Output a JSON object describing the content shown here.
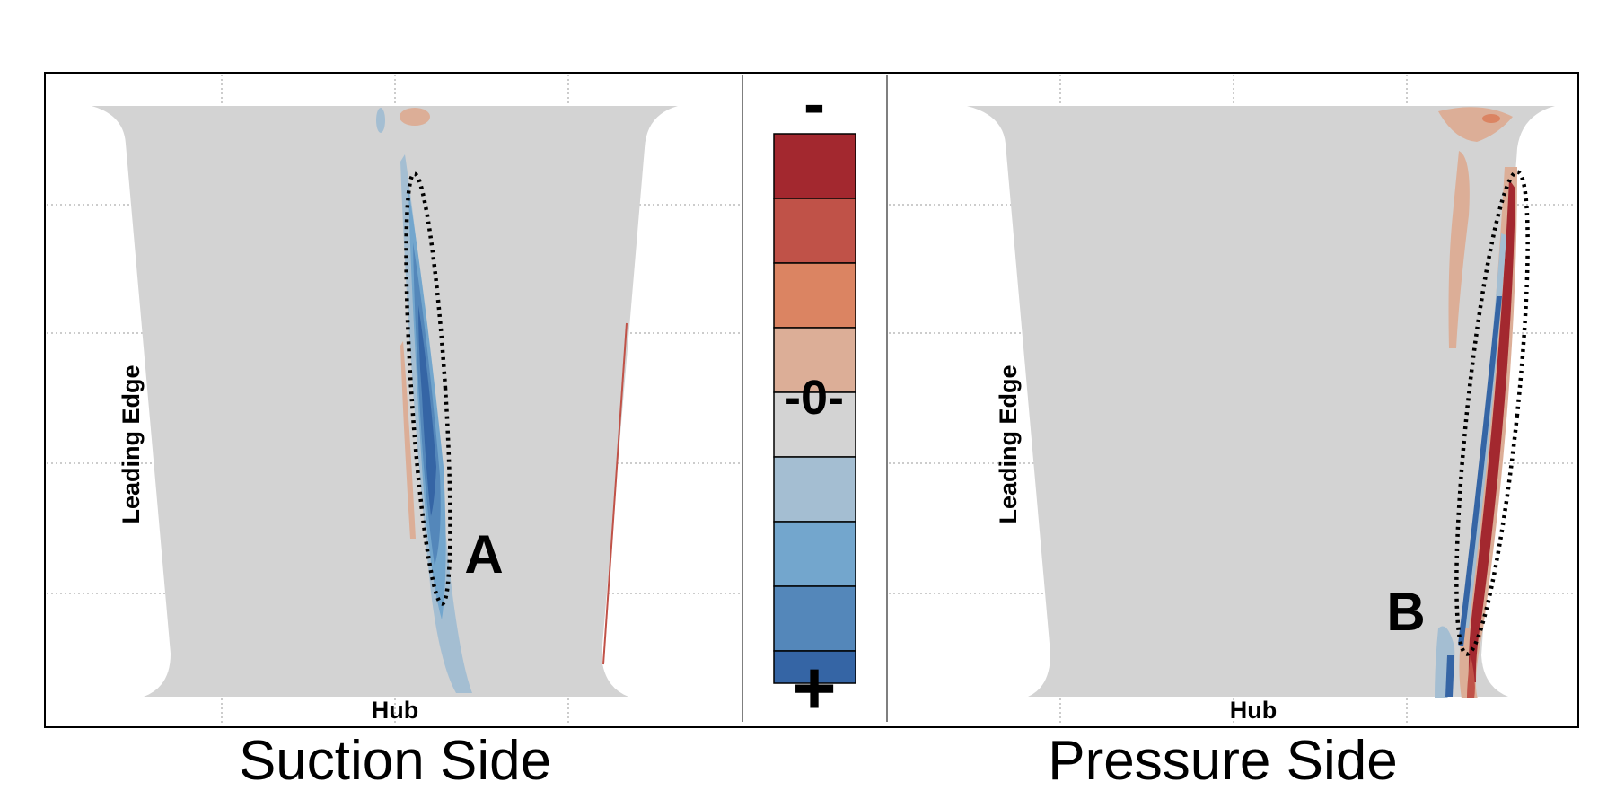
{
  "left_panel": {
    "title": "Suction Side",
    "edge_label": "Leading Edge",
    "bottom_label": "Hub",
    "marker": "A"
  },
  "right_panel": {
    "title": "Pressure Side",
    "edge_label": "Leading Edge",
    "bottom_label": "Hub",
    "marker": "B"
  },
  "colorbar": {
    "top_label": "-",
    "middle_label": "-0-",
    "bottom_label": "+",
    "colors": [
      "#A3282F",
      "#C05248",
      "#DB8462",
      "#DCAE97",
      "#D3D3D3",
      "#A4BED2",
      "#73A6CD",
      "#5487BA",
      "#3565A5"
    ]
  },
  "colors": {
    "blade_fill": "#D3D3D3",
    "grid_line": "#9A9A9A",
    "frame": "#000000"
  }
}
